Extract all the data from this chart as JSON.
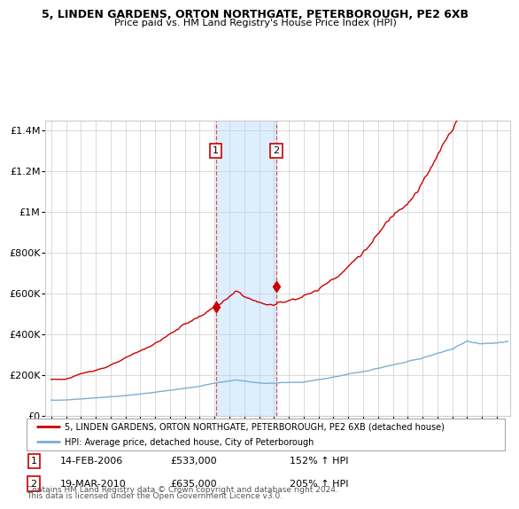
{
  "title_line1": "5, LINDEN GARDENS, ORTON NORTHGATE, PETERBOROUGH, PE2 6XB",
  "title_line2": "Price paid vs. HM Land Registry's House Price Index (HPI)",
  "legend_red": "5, LINDEN GARDENS, ORTON NORTHGATE, PETERBOROUGH, PE2 6XB (detached house)",
  "legend_blue": "HPI: Average price, detached house, City of Peterborough",
  "transaction1_date": "14-FEB-2006",
  "transaction1_price": 533000,
  "transaction1_price_str": "£533,000",
  "transaction1_pct": "152% ↑ HPI",
  "transaction2_date": "19-MAR-2010",
  "transaction2_price": 635000,
  "transaction2_price_str": "£635,000",
  "transaction2_pct": "205% ↑ HPI",
  "footnote_line1": "Contains HM Land Registry data © Crown copyright and database right 2024.",
  "footnote_line2": "This data is licensed under the Open Government Licence v3.0.",
  "red_color": "#cc0000",
  "blue_color": "#7bafd4",
  "highlight_color": "#ddeeff",
  "grid_color": "#cccccc",
  "background_color": "#ffffff",
  "ylim": [
    0,
    1450000
  ],
  "yticks": [
    0,
    200000,
    400000,
    600000,
    800000,
    1000000,
    1200000,
    1400000
  ],
  "ytick_labels": [
    "£0",
    "£200K",
    "£400K",
    "£600K",
    "£800K",
    "£1M",
    "£1.2M",
    "£1.4M"
  ],
  "t1_year": 2006.083,
  "t2_year": 2010.167,
  "t1_price": 533000,
  "t2_price": 635000,
  "xlim_left": 1994.6,
  "xlim_right": 2025.9
}
